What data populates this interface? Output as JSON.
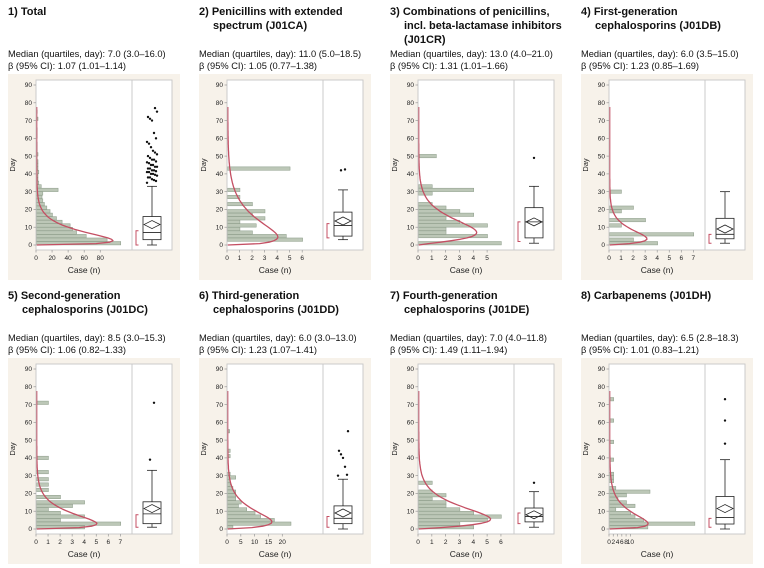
{
  "colors": {
    "bar_fill": "#bcc7b7",
    "bar_stroke": "#8a9a87",
    "curve": "#c44f63",
    "frame": "#c6c6c6",
    "tick": "#999999",
    "text": "#222222",
    "boxplot": "#222222",
    "outlier": "#111111",
    "plot_bg": "#ffffff",
    "gutter_bg": "#f7f2ea"
  },
  "chart_data": [
    {
      "type": "bar",
      "subtype": "horizontal-histogram-with-boxplot",
      "title": "1) Total",
      "median_label": "Median (quartiles, day): 7.0 (3.0–16.0)",
      "beta_label": "β (95% CI): 1.07 (1.01–1.14)",
      "xlabel": "Case (n)",
      "ylabel": "Day",
      "ylim": [
        0,
        90
      ],
      "y_tick_step": 10,
      "x_ticks": [
        0,
        20,
        40,
        60,
        80
      ],
      "x_max": 117,
      "bars": [
        [
          1,
          105
        ],
        [
          3,
          88
        ],
        [
          5,
          62
        ],
        [
          7,
          50
        ],
        [
          9,
          45
        ],
        [
          11,
          42
        ],
        [
          13,
          32
        ],
        [
          15,
          25
        ],
        [
          17,
          20
        ],
        [
          19,
          17
        ],
        [
          21,
          13
        ],
        [
          23,
          10
        ],
        [
          25,
          8
        ],
        [
          27,
          7
        ],
        [
          29,
          8
        ],
        [
          31,
          27
        ],
        [
          33,
          6
        ],
        [
          35,
          3
        ],
        [
          37,
          2
        ],
        [
          39,
          2
        ],
        [
          41,
          3
        ],
        [
          43,
          2
        ],
        [
          45,
          2
        ],
        [
          47,
          2
        ],
        [
          49,
          1
        ],
        [
          51,
          2
        ],
        [
          53,
          1
        ],
        [
          55,
          1
        ],
        [
          57,
          1
        ],
        [
          61,
          1
        ],
        [
          63,
          1
        ],
        [
          65,
          1
        ],
        [
          71,
          2
        ],
        [
          75,
          1
        ]
      ],
      "fit_curve": {
        "peak_day": 2.5,
        "peak_value": 95,
        "shape": 0.55
      },
      "boxplot": {
        "whisker_low": 0,
        "q1": 3,
        "median": 7,
        "q3": 16,
        "whisker_high": 33,
        "mean": 11.5,
        "shortest_half": [
          0,
          8
        ],
        "outliers": [
          35,
          36,
          36.5,
          37,
          38,
          38,
          39,
          39.5,
          40,
          40,
          41,
          41,
          41.5,
          42,
          42,
          43,
          43,
          44,
          44,
          45,
          45,
          46,
          46.5,
          47,
          48,
          48,
          49,
          50,
          51,
          52,
          53,
          55,
          57,
          58,
          60,
          63,
          70,
          71,
          72,
          75,
          77
        ]
      }
    },
    {
      "type": "bar",
      "subtype": "horizontal-histogram-with-boxplot",
      "title": "2) Penicillins with extended spectrum (J01CA)",
      "median_label": "Median (quartiles, day): 11.0 (5.0–18.5)",
      "beta_label": "β (95% CI): 1.05 (0.77–1.38)",
      "xlabel": "Case (n)",
      "ylabel": "Day",
      "ylim": [
        0,
        90
      ],
      "y_tick_step": 10,
      "x_ticks": [
        0,
        1,
        2,
        3,
        4,
        5,
        6
      ],
      "x_max": 7.5,
      "bars": [
        [
          3,
          6
        ],
        [
          5,
          4.7
        ],
        [
          7,
          2
        ],
        [
          9,
          1
        ],
        [
          11,
          2.3
        ],
        [
          13,
          1
        ],
        [
          15,
          3
        ],
        [
          17,
          2
        ],
        [
          19,
          3
        ],
        [
          23,
          2
        ],
        [
          27,
          1
        ],
        [
          31,
          1
        ],
        [
          43,
          5
        ]
      ],
      "fit_curve": {
        "peak_day": 4.5,
        "peak_value": 4.0,
        "shape": 0.5
      },
      "boxplot": {
        "whisker_low": 3,
        "q1": 5,
        "median": 11,
        "q3": 18.5,
        "whisker_high": 31,
        "mean": 13.5,
        "shortest_half": [
          4,
          12
        ],
        "outliers": [
          42,
          42.5
        ]
      }
    },
    {
      "type": "bar",
      "subtype": "horizontal-histogram-with-boxplot",
      "title": "3) Combinations of penicillins, incl. beta-lactamase inhibitors (J01CR)",
      "median_label": "Median (quartiles, day): 13.0 (4.0–21.0)",
      "beta_label": "β (95% CI): 1.31 (1.01–1.66)",
      "xlabel": "Case (n)",
      "ylabel": "Day",
      "ylim": [
        0,
        90
      ],
      "y_tick_step": 10,
      "x_ticks": [
        0,
        1,
        2,
        3,
        4,
        5
      ],
      "x_max": 6.8,
      "bars": [
        [
          1,
          6
        ],
        [
          5,
          5
        ],
        [
          7,
          2
        ],
        [
          9,
          2
        ],
        [
          11,
          5
        ],
        [
          13,
          3
        ],
        [
          15,
          2
        ],
        [
          17,
          4
        ],
        [
          19,
          3
        ],
        [
          21,
          2
        ],
        [
          23,
          1
        ],
        [
          29,
          1
        ],
        [
          31,
          4
        ],
        [
          33,
          1
        ],
        [
          50,
          1.3
        ]
      ],
      "fit_curve": {
        "peak_day": 7,
        "peak_value": 4.2,
        "shape": 1.4
      },
      "boxplot": {
        "whisker_low": 1,
        "q1": 4,
        "median": 13,
        "q3": 21,
        "whisker_high": 33,
        "mean": 13,
        "shortest_half": [
          2,
          13
        ],
        "outliers": [
          49
        ]
      }
    },
    {
      "type": "bar",
      "subtype": "horizontal-histogram-with-boxplot",
      "title": "4) First-generation cephalosporins (J01DB)",
      "median_label": "Median (quartiles, day): 6.0 (3.5–15.0)",
      "beta_label": "β (95% CI): 1.23 (0.85–1.69)",
      "xlabel": "Case (n)",
      "ylabel": "Day",
      "ylim": [
        0,
        90
      ],
      "y_tick_step": 10,
      "x_ticks": [
        0,
        1,
        2,
        3,
        4,
        5,
        6,
        7
      ],
      "x_max": 7.8,
      "bars": [
        [
          1,
          4
        ],
        [
          3,
          2
        ],
        [
          6,
          7
        ],
        [
          11,
          1
        ],
        [
          14,
          3
        ],
        [
          19,
          1
        ],
        [
          21,
          2
        ],
        [
          30,
          1
        ]
      ],
      "fit_curve": {
        "peak_day": 3.5,
        "peak_value": 3.1,
        "shape": 0.9
      },
      "boxplot": {
        "whisker_low": 1,
        "q1": 3.5,
        "median": 6,
        "q3": 15,
        "whisker_high": 30,
        "mean": 9,
        "shortest_half": [
          1,
          6
        ],
        "outliers": []
      }
    },
    {
      "type": "bar",
      "subtype": "horizontal-histogram-with-boxplot",
      "title": "5) Second-generation cephalosporins (J01DC)",
      "median_label": "Median (quartiles, day): 8.5 (3.0–15.3)",
      "beta_label": "β (95% CI): 1.06 (0.82–1.33)",
      "xlabel": "Case (n)",
      "ylabel": "Day",
      "ylim": [
        0,
        90
      ],
      "y_tick_step": 10,
      "x_ticks": [
        0,
        1,
        2,
        3,
        4,
        5,
        6,
        7
      ],
      "x_max": 7.8,
      "bars": [
        [
          1,
          4
        ],
        [
          3,
          7
        ],
        [
          5,
          2
        ],
        [
          7,
          4
        ],
        [
          9,
          2
        ],
        [
          11,
          1
        ],
        [
          13,
          3
        ],
        [
          15,
          4
        ],
        [
          18,
          2
        ],
        [
          22,
          1
        ],
        [
          25,
          1
        ],
        [
          28,
          1
        ],
        [
          32,
          1
        ],
        [
          40,
          1
        ],
        [
          71,
          1
        ]
      ],
      "fit_curve": {
        "peak_day": 3,
        "peak_value": 5.0,
        "shape": 0.6
      },
      "boxplot": {
        "whisker_low": 1,
        "q1": 3,
        "median": 8.5,
        "q3": 15.3,
        "whisker_high": 33,
        "mean": 11.5,
        "shortest_half": [
          1,
          8
        ],
        "outliers": [
          39,
          71
        ]
      }
    },
    {
      "type": "bar",
      "subtype": "horizontal-histogram-with-boxplot",
      "title": "6) Third-generation cephalosporins (J01DD)",
      "median_label": "Median (quartiles, day): 6.0 (3.0–13.0)",
      "beta_label": "β (95% CI): 1.23 (1.07–1.41)",
      "xlabel": "Case (n)",
      "ylabel": "Day",
      "ylim": [
        0,
        90
      ],
      "y_tick_step": 10,
      "x_ticks": [
        0,
        5,
        10,
        15,
        20
      ],
      "x_max": 34,
      "bars": [
        [
          1,
          2
        ],
        [
          3,
          23
        ],
        [
          5,
          17
        ],
        [
          7,
          12
        ],
        [
          9,
          10
        ],
        [
          11,
          7
        ],
        [
          13,
          4
        ],
        [
          15,
          5
        ],
        [
          17,
          3
        ],
        [
          19,
          3
        ],
        [
          21,
          3
        ],
        [
          23,
          2
        ],
        [
          25,
          1
        ],
        [
          27,
          1
        ],
        [
          29,
          3
        ],
        [
          31,
          1
        ],
        [
          41,
          1
        ],
        [
          44,
          1
        ],
        [
          55,
          0.8
        ]
      ],
      "fit_curve": {
        "peak_day": 4,
        "peak_value": 16,
        "shape": 0.75
      },
      "boxplot": {
        "whisker_low": 0,
        "q1": 3,
        "median": 6,
        "q3": 13,
        "whisker_high": 28,
        "mean": 9,
        "shortest_half": [
          1,
          7
        ],
        "outliers": [
          30,
          30.5,
          35,
          40,
          42,
          44,
          55
        ]
      }
    },
    {
      "type": "bar",
      "subtype": "horizontal-histogram-with-boxplot",
      "title": "7) Fourth-generation cephalosporins (J01DE)",
      "median_label": "Median (quartiles, day): 7.0 (4.0–11.8)",
      "beta_label": "β (95% CI): 1.49 (1.11–1.94)",
      "xlabel": "Case (n)",
      "ylabel": "Day",
      "ylim": [
        0,
        90
      ],
      "y_tick_step": 10,
      "x_ticks": [
        0,
        1,
        2,
        3,
        4,
        5,
        6
      ],
      "x_max": 6.8,
      "bars": [
        [
          1,
          4
        ],
        [
          3,
          3
        ],
        [
          5,
          5
        ],
        [
          7,
          6
        ],
        [
          9,
          4
        ],
        [
          11,
          3
        ],
        [
          13,
          2
        ],
        [
          15,
          2
        ],
        [
          17,
          1
        ],
        [
          19,
          2
        ],
        [
          21,
          1
        ],
        [
          26,
          1
        ]
      ],
      "fit_curve": {
        "peak_day": 5.5,
        "peak_value": 5.2,
        "shape": 1.1
      },
      "boxplot": {
        "whisker_low": 1,
        "q1": 4,
        "median": 7,
        "q3": 11.8,
        "whisker_high": 21,
        "mean": 8,
        "shortest_half": [
          3,
          9
        ],
        "outliers": [
          26
        ]
      }
    },
    {
      "type": "bar",
      "subtype": "horizontal-histogram-with-boxplot",
      "title": "8) Carbapenems (J01DH)",
      "median_label": "Median (quartiles, day): 6.5 (2.8–18.3)",
      "beta_label": "β (95% CI): 1.01 (0.83–1.21)",
      "xlabel": "Case (n)",
      "ylabel": "Day",
      "ylim": [
        0,
        90
      ],
      "y_tick_step": 10,
      "x_ticks": [
        0,
        2,
        4,
        6,
        8,
        10
      ],
      "x_max": 44,
      "bars": [
        [
          1,
          18
        ],
        [
          3,
          40
        ],
        [
          5,
          16
        ],
        [
          7,
          12
        ],
        [
          9,
          10
        ],
        [
          11,
          3
        ],
        [
          13,
          12
        ],
        [
          15,
          8
        ],
        [
          17,
          4
        ],
        [
          19,
          8
        ],
        [
          21,
          19
        ],
        [
          23,
          3
        ],
        [
          27,
          2
        ],
        [
          29,
          2
        ],
        [
          31,
          2
        ],
        [
          39,
          2
        ],
        [
          49,
          2
        ],
        [
          61,
          2
        ],
        [
          73,
          2
        ]
      ],
      "fit_curve": {
        "peak_day": 3,
        "peak_value": 18,
        "shape": 0.55
      },
      "boxplot": {
        "whisker_low": 0,
        "q1": 2.8,
        "median": 6.5,
        "q3": 18.3,
        "whisker_high": 39,
        "mean": 11.5,
        "shortest_half": [
          1,
          6
        ],
        "outliers": [
          48,
          61,
          73
        ]
      }
    }
  ]
}
